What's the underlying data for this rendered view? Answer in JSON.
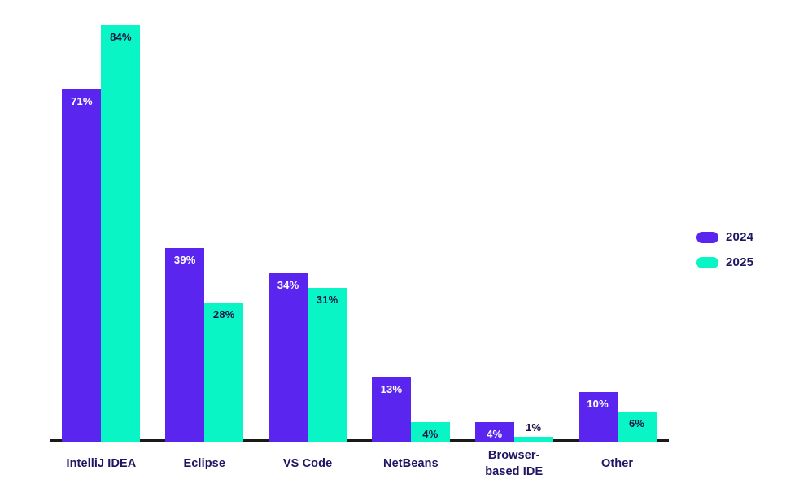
{
  "chart_data": {
    "type": "bar",
    "title": "",
    "xlabel": "",
    "ylabel": "",
    "categories": [
      "IntelliJ IDEA",
      "Eclipse",
      "VS Code",
      "NetBeans",
      "Browser-\nbased IDE",
      "Other"
    ],
    "series": [
      {
        "name": "2024",
        "color": "#5b25f0",
        "label_color": "#ffffff",
        "values": [
          71,
          39,
          34,
          13,
          4,
          10
        ]
      },
      {
        "name": "2025",
        "color": "#0af5c5",
        "label_color": "#161346",
        "values": [
          84,
          28,
          31,
          4,
          1,
          6
        ]
      }
    ],
    "value_suffix": "%",
    "ylim": [
      0,
      89
    ],
    "grid": false,
    "legend_position": "right",
    "axis_line_color": "#1a1a1a",
    "text_color": "#1e1663"
  }
}
